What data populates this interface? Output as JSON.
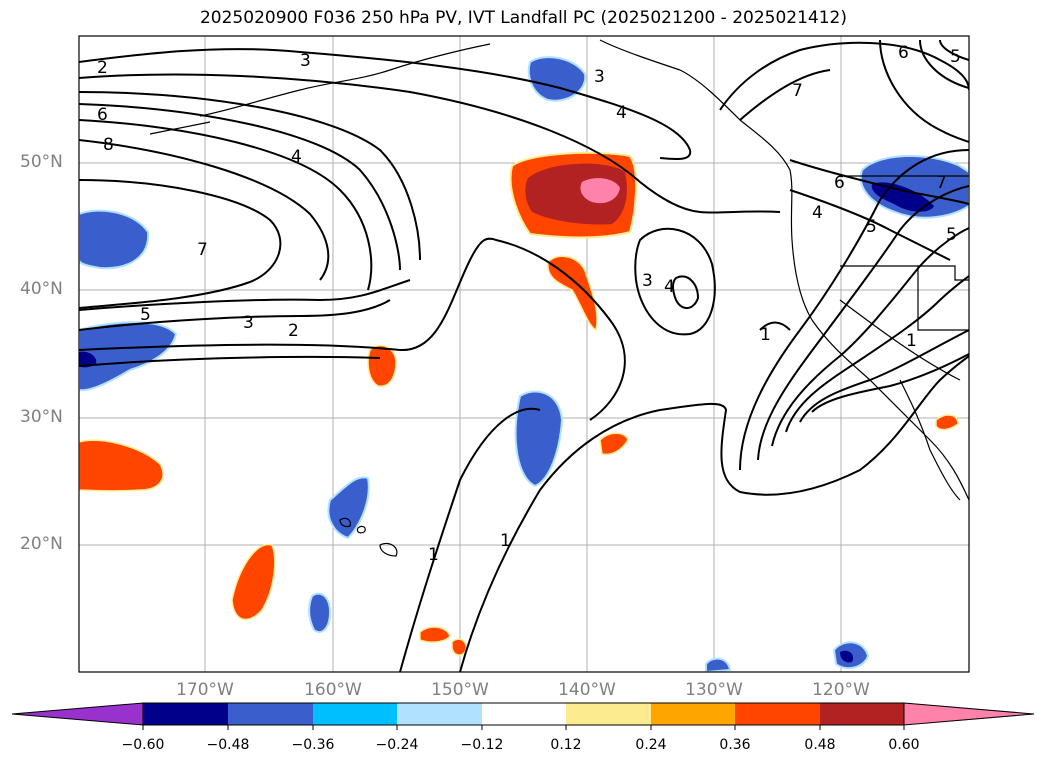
{
  "title": "2025020900 F036 250 hPa PV, IVT Landfall PC (2025021200 - 2025021412)",
  "map": {
    "lat_labels": [
      "50°N",
      "40°N",
      "30°N",
      "20°N"
    ],
    "lon_labels": [
      "170°W",
      "160°W",
      "150°W",
      "140°W",
      "130°W",
      "120°W"
    ],
    "contour_labels": [
      {
        "id": "c2a",
        "text": "2"
      },
      {
        "id": "c3a",
        "text": "3"
      },
      {
        "id": "c6a",
        "text": "6"
      },
      {
        "id": "c8a",
        "text": "8"
      },
      {
        "id": "c4a",
        "text": "4"
      },
      {
        "id": "c7a",
        "text": "7"
      },
      {
        "id": "c5a",
        "text": "5"
      },
      {
        "id": "c3b",
        "text": "3"
      },
      {
        "id": "c2b",
        "text": "2"
      },
      {
        "id": "c3c",
        "text": "3"
      },
      {
        "id": "c4b",
        "text": "4"
      },
      {
        "id": "c3d",
        "text": "3"
      },
      {
        "id": "c4c",
        "text": "4"
      },
      {
        "id": "c1a",
        "text": "1"
      },
      {
        "id": "c1b",
        "text": "1"
      },
      {
        "id": "c1c",
        "text": "1"
      },
      {
        "id": "c6b",
        "text": "6"
      },
      {
        "id": "c5b",
        "text": "5"
      },
      {
        "id": "c7b",
        "text": "7"
      },
      {
        "id": "c4d",
        "text": "4"
      },
      {
        "id": "c5c",
        "text": "5"
      },
      {
        "id": "c6c",
        "text": "6"
      },
      {
        "id": "c5d",
        "text": "5"
      },
      {
        "id": "c7c",
        "text": "7"
      },
      {
        "id": "c1d",
        "text": "1"
      }
    ]
  },
  "colorbar": {
    "ticks": [
      "−0.60",
      "−0.48",
      "−0.36",
      "−0.24",
      "−0.12",
      "0.12",
      "0.24",
      "0.36",
      "0.48",
      "0.60"
    ],
    "colors": [
      "#9932cc",
      "#00008b",
      "#3a5fcd",
      "#00bfff",
      "#b0e2ff",
      "#ffffff",
      "#fdeb8f",
      "#ffa500",
      "#ff4500",
      "#b22222",
      "#ff82ab"
    ]
  },
  "shading_colors": {
    "blue": "#3a5fcd",
    "navy": "#00008b",
    "light_blue": "#b0e2ff",
    "orange_red": "#ff4500",
    "dark_red": "#b22222",
    "pink": "#ff82ab",
    "yellow": "#fdeb8f"
  }
}
